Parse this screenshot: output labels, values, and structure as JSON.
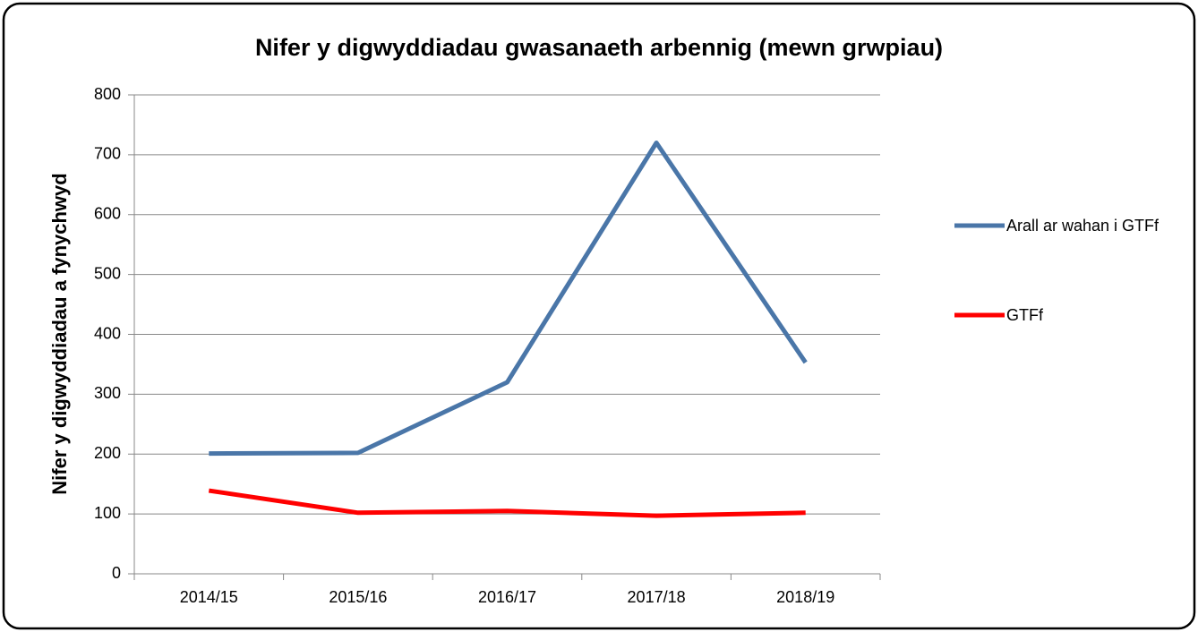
{
  "chart_data": {
    "type": "line",
    "title": "Nifer y digwyddiadau gwasanaeth arbennig (mewn grwpiau)",
    "y_label": "Nifer y digwyddiadau a fynychwyd",
    "categories": [
      "2014/15",
      "2015/16",
      "2016/17",
      "2017/18",
      "2018/19"
    ],
    "series": [
      {
        "name": "Arall ar wahan i GTFf",
        "color": "#4a76a8",
        "values": [
          201,
          202,
          320,
          720,
          353
        ]
      },
      {
        "name": "GTFf",
        "color": "#ff0000",
        "values": [
          139,
          102,
          105,
          97,
          102
        ]
      }
    ],
    "ylim": [
      0,
      800
    ],
    "yticks": [
      0,
      100,
      200,
      300,
      400,
      500,
      600,
      700,
      800
    ],
    "grid": true,
    "legend": "right"
  }
}
